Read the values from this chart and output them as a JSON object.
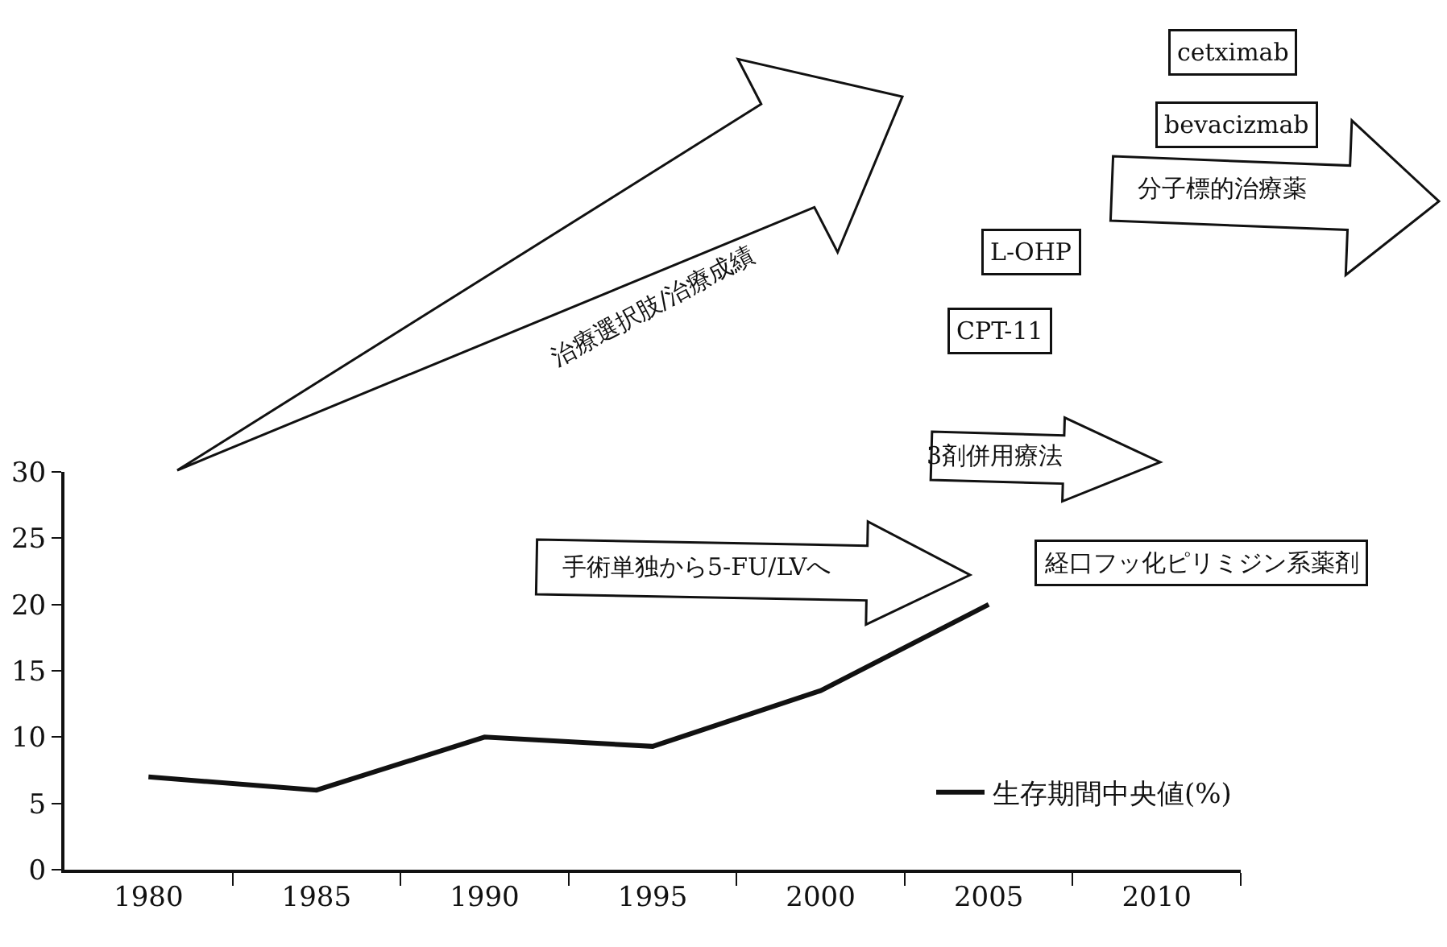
{
  "chart_data": {
    "type": "line",
    "x": [
      1980,
      1985,
      1990,
      1995,
      2000,
      2005
    ],
    "series": [
      {
        "name": "生存期間中央値(%)",
        "color": "#111111",
        "values": [
          7,
          6,
          10,
          9.3,
          13.5,
          20
        ]
      }
    ],
    "xlim": [
      1977.5,
      2012.5
    ],
    "xticks": [
      1980,
      {
        "value": 1982.5,
        "label": null
      },
      1985,
      {
        "value": 1987.5,
        "label": null
      },
      1990,
      {
        "value": 1992.5,
        "label": null
      },
      1995,
      {
        "value": 1997.5,
        "label": null
      },
      2000,
      {
        "value": 2002.5,
        "label": null
      },
      2005,
      {
        "value": 2007.5,
        "label": null
      },
      2010,
      {
        "value": 2012.5,
        "label": null
      }
    ],
    "ylim": [
      0,
      30
    ],
    "yticks": [
      0,
      5,
      10,
      15,
      20,
      25,
      30
    ],
    "grid": false,
    "legend": "bottom right",
    "marker": "none",
    "line_style": "solid",
    "annotations": [
      "治療選択肢/治療成績",
      "手術単独から5-FU/LVへ",
      "3剤併用療法",
      "分子標的治療薬",
      "cetximab",
      "bevacizmab",
      "L-OHP",
      "CPT-11",
      "経口フッ化ピリミジン系薬剤"
    ]
  }
}
